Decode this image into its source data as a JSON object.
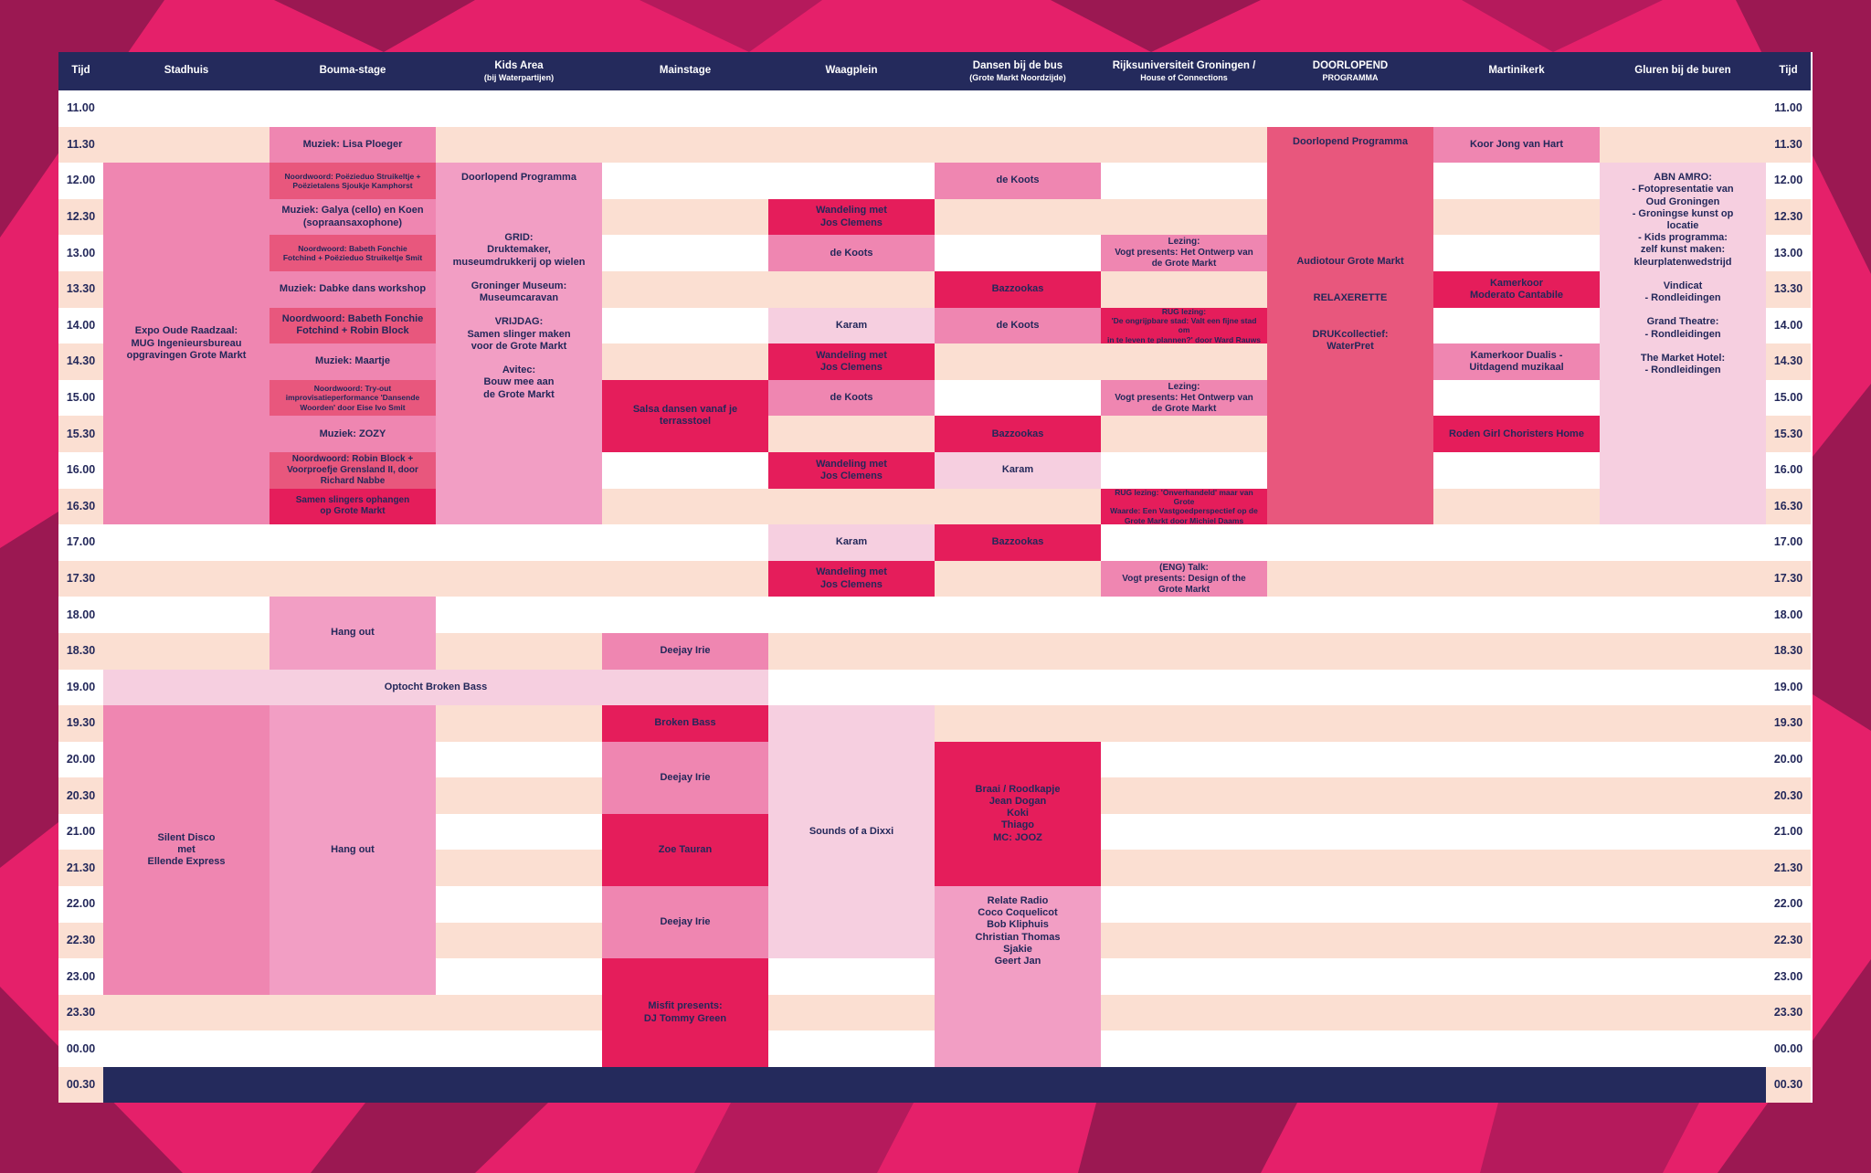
{
  "schedule": {
    "columns": [
      {
        "label": "Tijd"
      },
      {
        "label": "Stadhuis"
      },
      {
        "label": "Bouma-stage"
      },
      {
        "label": "Kids Area",
        "sub": "(bij Waterpartijen)"
      },
      {
        "label": "Mainstage"
      },
      {
        "label": "Waagplein"
      },
      {
        "label": "Dansen bij de bus",
        "sub": "(Grote Markt Noordzijde)"
      },
      {
        "label": "Rijksuniversiteit Groningen /",
        "sub": "House of Connections"
      },
      {
        "label": "DOORLOPEND",
        "sub": "PROGRAMMA"
      },
      {
        "label": "Martinikerk"
      },
      {
        "label": "Gluren bij de buren"
      },
      {
        "label": "Tijd"
      }
    ],
    "times": [
      "11.00",
      "11.30",
      "12.00",
      "12.30",
      "13.00",
      "13.30",
      "14.00",
      "14.30",
      "15.00",
      "15.30",
      "16.00",
      "16.30",
      "17.00",
      "17.30",
      "18.00",
      "18.30",
      "19.00",
      "19.30",
      "20.00",
      "20.30",
      "21.00",
      "21.30",
      "22.00",
      "22.30",
      "23.00",
      "23.30",
      "00.00",
      "00.30"
    ],
    "events": [
      {
        "col": 2,
        "row": 1,
        "span": 1,
        "text": "Muziek: Lisa Ploeger",
        "color": "c-hot",
        "size": ""
      },
      {
        "col": 2,
        "row": 2,
        "span": 1,
        "text": "Noordwoord: Poëzieduo Struikeltje +\nPoëzietalens Sjoukje Kamphorst",
        "color": "c-deep",
        "size": "tiny"
      },
      {
        "col": 2,
        "row": 3,
        "span": 1,
        "text": "Muziek: Galya (cello) en Koen\n(sopraansaxophone)",
        "color": "c-hot",
        "size": ""
      },
      {
        "col": 2,
        "row": 4,
        "span": 1,
        "text": "Noordwoord: Babeth Fonchie\nFotchind + Poëzieduo Struikeltje Smit",
        "color": "c-deep",
        "size": "tiny"
      },
      {
        "col": 2,
        "row": 5,
        "span": 1,
        "text": "Muziek: Dabke dans workshop",
        "color": "c-hot",
        "size": ""
      },
      {
        "col": 2,
        "row": 6,
        "span": 1,
        "text": "Noordwoord: Babeth Fonchie\nFotchind + Robin Block",
        "color": "c-deep",
        "size": ""
      },
      {
        "col": 2,
        "row": 7,
        "span": 1,
        "text": "Muziek: Maartje",
        "color": "c-hot",
        "size": ""
      },
      {
        "col": 2,
        "row": 8,
        "span": 1,
        "text": "Noordwoord: Try-out\nimprovisatieperformance 'Dansende\nWoorden' door Eise Ivo Smit",
        "color": "c-deep",
        "size": "tiny"
      },
      {
        "col": 2,
        "row": 9,
        "span": 1,
        "text": "Muziek: ZOZY",
        "color": "c-hot",
        "size": ""
      },
      {
        "col": 2,
        "row": 10,
        "span": 1,
        "text": "Noordwoord: Robin Block +\nVoorproefje Grensland II, door\nRichard Nabbe",
        "color": "c-deep",
        "size": "small"
      },
      {
        "col": 2,
        "row": 11,
        "span": 1,
        "text": "Samen slingers ophangen\nop Grote Markt",
        "color": "c-red",
        "size": "small"
      },
      {
        "col": 1,
        "row": 2,
        "span": 10,
        "text": "Expo Oude Raadzaal:\nMUG Ingenieursbureau\nopgravingen Grote Markt",
        "color": "c-hot",
        "size": ""
      },
      {
        "col": 3,
        "row": 2,
        "span": 10,
        "text": "Doorlopend Programma\n\n\n\n\nGRID:\nDruktemaker,\nmuseumdrukkerij op wielen\n\nGroninger Museum:\nMuseumcaravan\n\nVRIJDAG:\nSamen slinger maken\nvoor de Grote Markt\n\nAvitec:\nBouw mee aan\nde Grote Markt",
        "color": "c-mid",
        "size": "",
        "top": true
      },
      {
        "col": 4,
        "row": 8,
        "span": 2,
        "text": "Salsa dansen vanaf je\nterrasstoel",
        "color": "c-red",
        "size": ""
      },
      {
        "col": 5,
        "row": 3,
        "span": 1,
        "text": "Wandeling met\nJos Clemens",
        "color": "c-red",
        "size": ""
      },
      {
        "col": 5,
        "row": 4,
        "span": 1,
        "text": "de Koots",
        "color": "c-hot",
        "size": ""
      },
      {
        "col": 5,
        "row": 6,
        "span": 1,
        "text": "Karam",
        "color": "c-light",
        "size": ""
      },
      {
        "col": 5,
        "row": 7,
        "span": 1,
        "text": "Wandeling met\nJos Clemens",
        "color": "c-red",
        "size": ""
      },
      {
        "col": 5,
        "row": 8,
        "span": 1,
        "text": "de Koots",
        "color": "c-hot",
        "size": ""
      },
      {
        "col": 5,
        "row": 10,
        "span": 1,
        "text": "Wandeling met\nJos Clemens",
        "color": "c-red",
        "size": ""
      },
      {
        "col": 5,
        "row": 12,
        "span": 1,
        "text": "Karam",
        "color": "c-light",
        "size": ""
      },
      {
        "col": 5,
        "row": 13,
        "span": 1,
        "text": "Wandeling met\nJos Clemens",
        "color": "c-red",
        "size": ""
      },
      {
        "col": 6,
        "row": 2,
        "span": 1,
        "text": "de Koots",
        "color": "c-hot",
        "size": ""
      },
      {
        "col": 6,
        "row": 5,
        "span": 1,
        "text": "Bazzookas",
        "color": "c-red",
        "size": ""
      },
      {
        "col": 6,
        "row": 6,
        "span": 1,
        "text": "de Koots",
        "color": "c-hot",
        "size": ""
      },
      {
        "col": 6,
        "row": 9,
        "span": 1,
        "text": "Bazzookas",
        "color": "c-red",
        "size": ""
      },
      {
        "col": 6,
        "row": 10,
        "span": 1,
        "text": "Karam",
        "color": "c-light",
        "size": ""
      },
      {
        "col": 6,
        "row": 12,
        "span": 1,
        "text": "Bazzookas",
        "color": "c-red",
        "size": ""
      },
      {
        "col": 7,
        "row": 4,
        "span": 1,
        "text": "Lezing:\nVogt presents: Het Ontwerp van\nde Grote Markt",
        "color": "c-hot",
        "size": "small"
      },
      {
        "col": 7,
        "row": 6,
        "span": 1,
        "text": "RUG lezing:\n'De ongrijpbare stad: Valt een fijne stad om\nin te leven te plannen?' door Ward Rauws",
        "color": "c-red",
        "size": "tiny"
      },
      {
        "col": 7,
        "row": 8,
        "span": 1,
        "text": "Lezing:\nVogt presents: Het Ontwerp van\nde Grote Markt",
        "color": "c-hot",
        "size": "small"
      },
      {
        "col": 7,
        "row": 11,
        "span": 1,
        "text": "RUG lezing: 'Onverhandeld' maar van Grote\nWaarde: Een Vastgoedperspectief op de\nGrote Markt door Michiel Daams",
        "color": "c-red",
        "size": "tiny"
      },
      {
        "col": 7,
        "row": 13,
        "span": 1,
        "text": "(ENG) Talk:\nVogt presents: Design of the\nGrote Markt",
        "color": "c-hot",
        "size": "small"
      },
      {
        "col": 8,
        "row": 1,
        "span": 11,
        "text": "Doorlopend Programma\n\n\n\n\n\n\n\n\n\nAudiotour Grote Markt\n\n\nRELAXERETTE\n\n\nDRUKcollectief:\nWaterPret",
        "color": "c-deep",
        "size": "",
        "top": true
      },
      {
        "col": 9,
        "row": 1,
        "span": 1,
        "text": "Koor Jong van Hart",
        "color": "c-hot",
        "size": ""
      },
      {
        "col": 9,
        "row": 5,
        "span": 1,
        "text": "Kamerkoor\nModerato Cantabile",
        "color": "c-red",
        "size": ""
      },
      {
        "col": 9,
        "row": 7,
        "span": 1,
        "text": "Kamerkoor Dualis -\nUitdagend muzikaal",
        "color": "c-hot",
        "size": ""
      },
      {
        "col": 9,
        "row": 9,
        "span": 1,
        "text": "Roden Girl Choristers Home",
        "color": "c-red",
        "size": ""
      },
      {
        "col": 10,
        "row": 2,
        "span": 10,
        "text": "ABN AMRO:\n- Fotopresentatie van\nOud Groningen\n- Groningse kunst op\nlocatie\n- Kids programma:\nzelf kunst maken:\nkleurplatenwedstrijd\n\nVindicat\n- Rondleidingen\n\nGrand Theatre:\n- Rondleidingen\n\nThe Market Hotel:\n- Rondleidingen",
        "color": "c-light",
        "size": "",
        "top": true
      },
      {
        "col": 2,
        "row": 14,
        "span": 2,
        "text": "Hang out",
        "color": "c-mid",
        "size": ""
      },
      {
        "col": 4,
        "row": 15,
        "span": 1,
        "text": "Deejay Irie",
        "color": "c-hot",
        "size": ""
      },
      {
        "col": 1,
        "row": 16,
        "span": 1,
        "text": "Optocht Broken Bass",
        "color": "c-light",
        "size": "",
        "spanCols": 4
      },
      {
        "col": 4,
        "row": 17,
        "span": 1,
        "text": "Broken Bass",
        "color": "c-red",
        "size": ""
      },
      {
        "col": 4,
        "row": 18,
        "span": 2,
        "text": "Deejay Irie",
        "color": "c-hot",
        "size": ""
      },
      {
        "col": 4,
        "row": 20,
        "span": 2,
        "text": "Zoe Tauran",
        "color": "c-red",
        "size": ""
      },
      {
        "col": 4,
        "row": 22,
        "span": 2,
        "text": "Deejay Irie",
        "color": "c-hot",
        "size": ""
      },
      {
        "col": 4,
        "row": 24,
        "span": 3,
        "text": "Misfit presents:\nDJ Tommy Green",
        "color": "c-red",
        "size": ""
      },
      {
        "col": 1,
        "row": 17,
        "span": 8,
        "text": "Silent Disco\nmet\nEllende Express",
        "color": "c-hot",
        "size": ""
      },
      {
        "col": 2,
        "row": 17,
        "span": 8,
        "text": "Hang out",
        "color": "c-mid",
        "size": ""
      },
      {
        "col": 5,
        "row": 17,
        "span": 7,
        "text": "Sounds of a Dixxi",
        "color": "c-light",
        "size": ""
      },
      {
        "col": 6,
        "row": 18,
        "span": 4,
        "text": "Braai / Roodkapje\nJean Dogan\nKoki\nThiago\nMC: JOOZ",
        "color": "c-red",
        "size": ""
      },
      {
        "col": 6,
        "row": 22,
        "span": 5,
        "text": "Relate Radio\nCoco Coquelicot\nBob Kliphuis\nChristian Thomas\nSjakie\nGeert Jan",
        "color": "c-mid",
        "size": "",
        "top": true
      }
    ]
  }
}
